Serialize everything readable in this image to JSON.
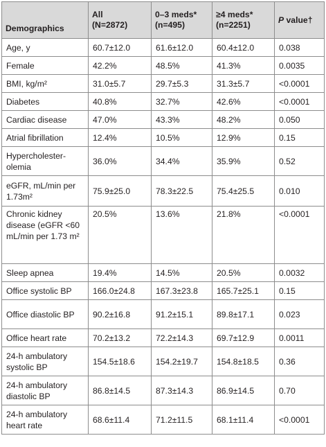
{
  "header": {
    "col1": "Demographics",
    "col2_line1": "All",
    "col2_line2": "(N=2872)",
    "col3_line1": "0–3 meds*",
    "col3_line2": "(n=495)",
    "col4_line1": "≥4 meds*",
    "col4_line2": "(n=2251)",
    "col5_p": "P",
    "col5_rest": " value†"
  },
  "rows": [
    {
      "label": "Age, y",
      "all": "60.7±12.0",
      "low": "61.6±12.0",
      "high": "60.4±12.0",
      "p": "0.038"
    },
    {
      "label": "Female",
      "all": "42.2%",
      "low": "48.5%",
      "high": "41.3%",
      "p": "0.0035"
    },
    {
      "label": "BMI, kg/m²",
      "all": "31.0±5.7",
      "low": "29.7±5.3",
      "high": "31.3±5.7",
      "p": "<0.0001"
    },
    {
      "label": "Diabetes",
      "all": "40.8%",
      "low": "32.7%",
      "high": "42.6%",
      "p": "<0.0001"
    },
    {
      "label": "Cardiac disease",
      "all": "47.0%",
      "low": "43.3%",
      "high": "48.2%",
      "p": "0.050"
    },
    {
      "label": "Atrial fibrillation",
      "all": "12.4%",
      "low": "10.5%",
      "high": "12.9%",
      "p": "0.15"
    },
    {
      "label": "Hypercholester-olemia",
      "all": "36.0%",
      "low": "34.4%",
      "high": "35.9%",
      "p": "0.52"
    },
    {
      "label": "eGFR, mL/min per 1.73m²",
      "all": "75.9±25.0",
      "low": "78.3±22.5",
      "high": "75.4±25.5",
      "p": "0.010"
    },
    {
      "label": "Chronic kidney disease (eGFR <60 mL/min per 1.73 m²",
      "all": "20.5%",
      "low": "13.6%",
      "high": "21.8%",
      "p": "<0.0001"
    },
    {
      "label": "Sleep apnea",
      "all": "19.4%",
      "low": "14.5%",
      "high": "20.5%",
      "p": "0.0032"
    },
    {
      "label": "Office systolic BP",
      "all": "166.0±24.8",
      "low": "167.3±23.8",
      "high": "165.7±25.1",
      "p": "0.15"
    },
    {
      "label": "Office diastolic BP",
      "all": "90.2±16.8",
      "low": "91.2±15.1",
      "high": "89.8±17.1",
      "p": "0.023"
    },
    {
      "label": "Office heart rate",
      "all": "70.2±13.2",
      "low": "72.2±14.3",
      "high": "69.7±12.9",
      "p": "0.0011"
    },
    {
      "label": "24-h ambulatory systolic BP",
      "all": "154.5±18.6",
      "low": "154.2±19.7",
      "high": "154.8±18.5",
      "p": "0.36"
    },
    {
      "label": "24-h ambulatory diastolic BP",
      "all": "86.8±14.5",
      "low": "87.3±14.3",
      "high": "86.9±14.5",
      "p": "0.70"
    },
    {
      "label": "24-h ambulatory heart rate",
      "all": "68.6±11.4",
      "low": "71.2±11.5",
      "high": "68.1±11.4",
      "p": "<0.0001"
    }
  ]
}
